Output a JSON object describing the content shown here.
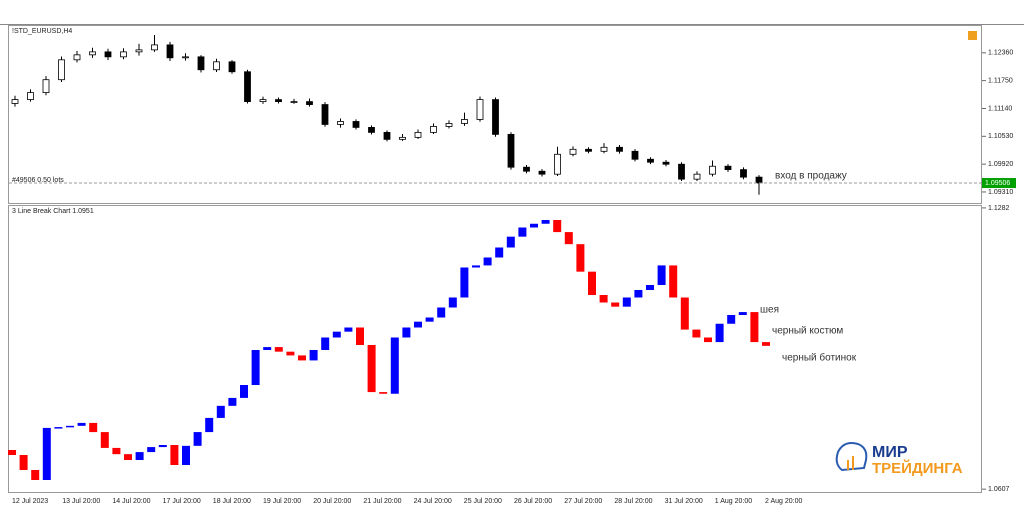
{
  "chart_data": [
    {
      "type": "candlestick",
      "title": "!STD_EURUSD,H4",
      "open": [
        1.1125,
        1.11335,
        1.11488,
        1.11771,
        1.12207,
        1.12316,
        1.12381,
        1.12272,
        1.12381,
        1.12425,
        1.12534,
        1.12251,
        1.12272,
        1.11989,
        1.12163,
        1.11945,
        1.11291,
        1.11335,
        1.11291,
        1.11291,
        1.11226,
        1.1079,
        1.10855,
        1.10725,
        1.10616,
        1.10463,
        1.10507,
        1.10616,
        1.10746,
        1.10812,
        1.10899,
        1.11335,
        1.10572,
        1.09853,
        1.09765,
        1.097,
        1.10136,
        1.10245,
        1.10201,
        1.10289,
        1.10201,
        1.10027,
        1.09962,
        1.09918,
        1.09591,
        1.097,
        1.09874,
        1.098,
        1.09635
      ],
      "high": [
        1.1142,
        1.1156,
        1.1185,
        1.1228,
        1.124,
        1.1247,
        1.1245,
        1.1246,
        1.1256,
        1.1275,
        1.126,
        1.1235,
        1.1231,
        1.1223,
        1.122,
        1.1199,
        1.114,
        1.1138,
        1.1135,
        1.1136,
        1.1128,
        1.1092,
        1.109,
        1.1077,
        1.1066,
        1.1058,
        1.1068,
        1.1081,
        1.1088,
        1.1105,
        1.114,
        1.1138,
        1.1062,
        1.099,
        1.0981,
        1.103,
        1.1031,
        1.1029,
        1.1038,
        1.1034,
        1.1025,
        1.1007,
        1.1001,
        1.0996,
        1.0976,
        1.1,
        1.0992,
        1.0985,
        1.0968
      ],
      "low": [
        1.1118,
        1.1129,
        1.1143,
        1.1172,
        1.1215,
        1.1225,
        1.122,
        1.1222,
        1.123,
        1.1238,
        1.1218,
        1.1219,
        1.1193,
        1.1194,
        1.119,
        1.1125,
        1.1124,
        1.1125,
        1.1124,
        1.1118,
        1.1074,
        1.1072,
        1.1068,
        1.1057,
        1.1042,
        1.1043,
        1.1047,
        1.1058,
        1.107,
        1.1076,
        1.1085,
        1.1052,
        1.098,
        1.0972,
        1.0965,
        1.0966,
        1.1009,
        1.1016,
        1.1016,
        1.1015,
        1.0998,
        1.0992,
        1.0987,
        1.0955,
        1.0955,
        1.0965,
        1.0975,
        1.0959,
        1.0925
      ],
      "close": [
        1.11335,
        1.11488,
        1.11771,
        1.12207,
        1.12316,
        1.12381,
        1.12272,
        1.12381,
        1.12425,
        1.12534,
        1.12251,
        1.12272,
        1.11989,
        1.12163,
        1.11945,
        1.11291,
        1.11335,
        1.11291,
        1.11291,
        1.11226,
        1.1079,
        1.10855,
        1.10725,
        1.10616,
        1.10463,
        1.10507,
        1.10616,
        1.10746,
        1.10812,
        1.10899,
        1.11335,
        1.10572,
        1.09853,
        1.09765,
        1.097,
        1.10136,
        1.10245,
        1.10201,
        1.10289,
        1.10201,
        1.10027,
        1.09962,
        1.09918,
        1.09591,
        1.097,
        1.09874,
        1.098,
        1.09635,
        1.09506
      ],
      "up_color": "#ffffff",
      "down_color": "#000000",
      "ylim": [
        1.0909,
        1.1297
      ],
      "yticks": [
        {
          "value": 1.0931,
          "label": "1.09310"
        },
        {
          "value": 1.0992,
          "label": "1.09920"
        },
        {
          "value": 1.1053,
          "label": "1.10530"
        },
        {
          "value": 1.1114,
          "label": "1.11140"
        },
        {
          "value": 1.1175,
          "label": "1.11750"
        },
        {
          "value": 1.1236,
          "label": "1.12360"
        }
      ],
      "price_line": 1.09506,
      "price_color": "#00a000",
      "order_label": "#49506 0.50 lots",
      "annotation": "вход в продажу"
    },
    {
      "type": "line_break",
      "title": "3 Line Break Chart 1.0951",
      "open": [
        1.0701,
        1.0689,
        1.0653,
        1.0629,
        1.0754,
        1.0756,
        1.0759,
        1.0766,
        1.0744,
        1.0706,
        1.0691,
        1.0677,
        1.0696,
        1.0708,
        1.0713,
        1.0665,
        1.0711,
        1.0744,
        1.0778,
        1.0807,
        1.0826,
        1.0857,
        1.0941,
        1.0948,
        1.0937,
        1.0928,
        1.0916,
        1.0941,
        1.0971,
        1.0985,
        1.0995,
        1.0953,
        1.084,
        1.0836,
        1.0971,
        1.0995,
        1.1009,
        1.1019,
        1.1043,
        1.1067,
        1.1139,
        1.1144,
        1.1163,
        1.1187,
        1.1213,
        1.1235,
        1.1244,
        1.1253,
        1.1224,
        1.1195,
        1.1129,
        1.1073,
        1.1055,
        1.1045,
        1.1067,
        1.1085,
        1.1097,
        1.1144,
        1.1067,
        1.099,
        1.0971,
        1.096,
        1.1004,
        1.1025,
        1.1032,
        1.096
      ],
      "close": [
        1.0689,
        1.0653,
        1.0629,
        1.0754,
        1.0756,
        1.0759,
        1.0766,
        1.0744,
        1.0706,
        1.0691,
        1.0677,
        1.0696,
        1.0708,
        1.0713,
        1.0665,
        1.0711,
        1.0744,
        1.0778,
        1.0807,
        1.0826,
        1.0857,
        1.0941,
        1.0948,
        1.0937,
        1.0928,
        1.0916,
        1.0941,
        1.0971,
        1.0985,
        1.0995,
        1.0953,
        1.084,
        1.0836,
        1.0971,
        1.0995,
        1.1009,
        1.1019,
        1.1043,
        1.1067,
        1.1139,
        1.1144,
        1.1163,
        1.1187,
        1.1213,
        1.1235,
        1.1244,
        1.1253,
        1.1224,
        1.1195,
        1.1129,
        1.1073,
        1.1055,
        1.1045,
        1.1067,
        1.1085,
        1.1097,
        1.1144,
        1.1067,
        1.099,
        1.0971,
        1.096,
        1.1004,
        1.1025,
        1.1032,
        1.096,
        1.0951
      ],
      "up_color": "#0000ff",
      "down_color": "#ff0000",
      "ylim": [
        1.0593,
        1.1289
      ],
      "yticks": [
        1.0607,
        1.1282
      ],
      "x_labels": [
        "12 Jul 2023",
        "13 Jul 20:00",
        "14 Jul 20:00",
        "17 Jul 20:00",
        "18 Jul 20:00",
        "19 Jul 20:00",
        "20 Jul 20:00",
        "21 Jul 20:00",
        "24 Jul 20:00",
        "25 Jul 20:00",
        "26 Jul 20:00",
        "27 Jul 20:00",
        "28 Jul 20:00",
        "31 Jul 20:00",
        "1 Aug 20:00",
        "2 Aug 20:00"
      ],
      "annotations": [
        "шея",
        "черный костюм",
        "черный ботинок"
      ]
    }
  ],
  "logo": {
    "line1": "МИР",
    "line2": "ТРЕЙДИНГА"
  }
}
